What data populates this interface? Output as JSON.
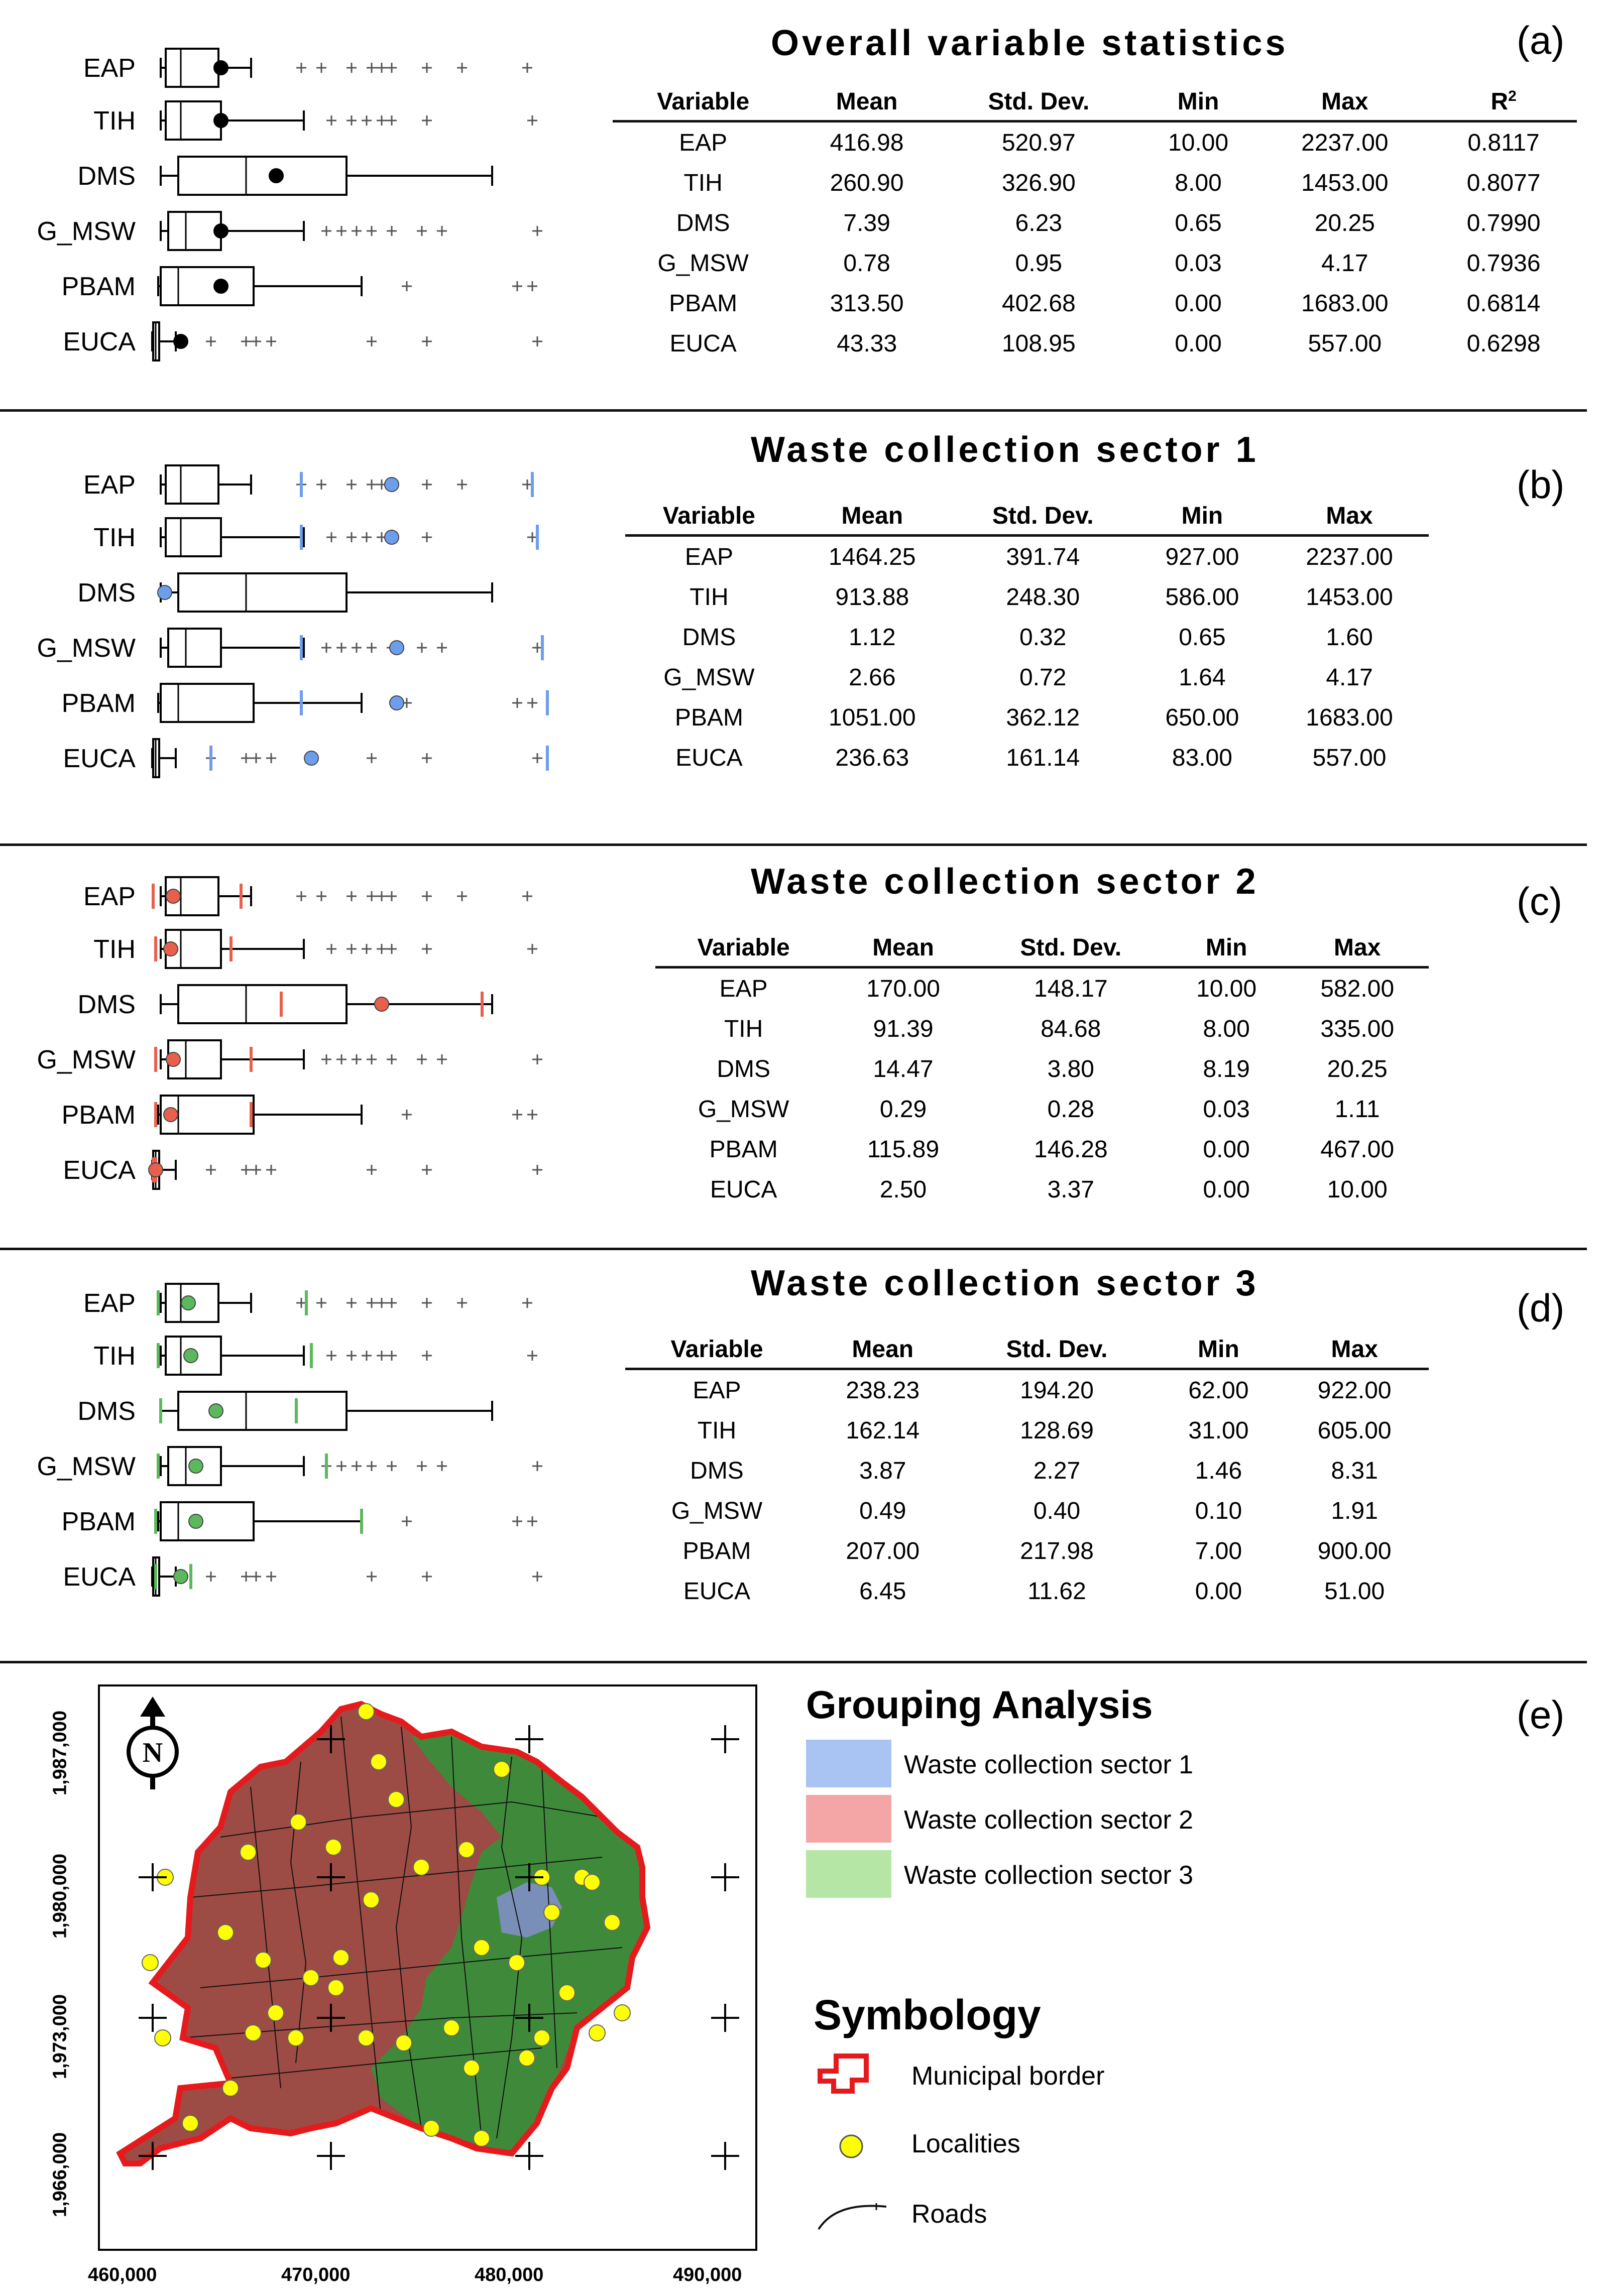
{
  "panels": [
    {
      "tag": "(a)",
      "title": "Overall variable statistics",
      "columns": [
        "Variable",
        "Mean",
        "Std. Dev.",
        "Min",
        "Max",
        "R2"
      ],
      "rows": [
        [
          "EAP",
          "416.98",
          "520.97",
          "10.00",
          "2237.00",
          "0.8117"
        ],
        [
          "TIH",
          "260.90",
          "326.90",
          "8.00",
          "1453.00",
          "0.8077"
        ],
        [
          "DMS",
          "7.39",
          "6.23",
          "0.65",
          "20.25",
          "0.7990"
        ],
        [
          "G_MSW",
          "0.78",
          "0.95",
          "0.03",
          "4.17",
          "0.7936"
        ],
        [
          "PBAM",
          "313.50",
          "402.68",
          "0.00",
          "1683.00",
          "0.6814"
        ],
        [
          "EUCA",
          "43.33",
          "108.95",
          "0.00",
          "557.00",
          "0.6298"
        ]
      ],
      "box_labels": [
        "EAP",
        "TIH",
        "DMS",
        "G_MSW",
        "PBAM",
        "EUCA"
      ],
      "marker_color": "#000000"
    },
    {
      "tag": "(b)",
      "title": "Waste collection sector 1",
      "columns": [
        "Variable",
        "Mean",
        "Std. Dev.",
        "Min",
        "Max"
      ],
      "rows": [
        [
          "EAP",
          "1464.25",
          "391.74",
          "927.00",
          "2237.00"
        ],
        [
          "TIH",
          "913.88",
          "248.30",
          "586.00",
          "1453.00"
        ],
        [
          "DMS",
          "1.12",
          "0.32",
          "0.65",
          "1.60"
        ],
        [
          "G_MSW",
          "2.66",
          "0.72",
          "1.64",
          "4.17"
        ],
        [
          "PBAM",
          "1051.00",
          "362.12",
          "650.00",
          "1683.00"
        ],
        [
          "EUCA",
          "236.63",
          "161.14",
          "83.00",
          "557.00"
        ]
      ],
      "box_labels": [
        "EAP",
        "TIH",
        "DMS",
        "G_MSW",
        "PBAM",
        "EUCA"
      ],
      "marker_color": "#6d9eeb"
    },
    {
      "tag": "(c)",
      "title": "Waste collection sector 2",
      "columns": [
        "Variable",
        "Mean",
        "Std. Dev.",
        "Min",
        "Max"
      ],
      "rows": [
        [
          "EAP",
          "170.00",
          "148.17",
          "10.00",
          "582.00"
        ],
        [
          "TIH",
          "91.39",
          "84.68",
          "8.00",
          "335.00"
        ],
        [
          "DMS",
          "14.47",
          "3.80",
          "8.19",
          "20.25"
        ],
        [
          "G_MSW",
          "0.29",
          "0.28",
          "0.03",
          "1.11"
        ],
        [
          "PBAM",
          "115.89",
          "146.28",
          "0.00",
          "467.00"
        ],
        [
          "EUCA",
          "2.50",
          "3.37",
          "0.00",
          "10.00"
        ]
      ],
      "box_labels": [
        "EAP",
        "TIH",
        "DMS",
        "G_MSW",
        "PBAM",
        "EUCA"
      ],
      "marker_color": "#e8604c"
    },
    {
      "tag": "(d)",
      "title": "Waste collection sector 3",
      "columns": [
        "Variable",
        "Mean",
        "Std. Dev.",
        "Min",
        "Max"
      ],
      "rows": [
        [
          "EAP",
          "238.23",
          "194.20",
          "62.00",
          "922.00"
        ],
        [
          "TIH",
          "162.14",
          "128.69",
          "31.00",
          "605.00"
        ],
        [
          "DMS",
          "3.87",
          "2.27",
          "1.46",
          "8.31"
        ],
        [
          "G_MSW",
          "0.49",
          "0.40",
          "0.10",
          "1.91"
        ],
        [
          "PBAM",
          "207.00",
          "217.98",
          "7.00",
          "900.00"
        ],
        [
          "EUCA",
          "6.45",
          "11.62",
          "0.00",
          "51.00"
        ]
      ],
      "box_labels": [
        "EAP",
        "TIH",
        "DMS",
        "G_MSW",
        "PBAM",
        "EUCA"
      ],
      "marker_color": "#5cb85c"
    }
  ],
  "map": {
    "tag": "(e)",
    "title": "Grouping Analysis",
    "legend": [
      {
        "label": "Waste collection sector 1",
        "color": "#a9c4f2"
      },
      {
        "label": "Waste collection sector 2",
        "color": "#f4a6a6"
      },
      {
        "label": "Waste collection sector 3",
        "color": "#b6e6a6"
      }
    ],
    "symbology_title": "Symbology",
    "symbology": [
      "Municipal border",
      "Localities",
      "Roads"
    ],
    "north_label": "N",
    "x_ticks": [
      "460,000",
      "470,000",
      "480,000",
      "490,000"
    ],
    "y_ticks": [
      "1,987,000",
      "1,980,000",
      "1,973,000",
      "1,966,000"
    ]
  },
  "chart_data": [
    {
      "type": "table",
      "title": "Overall variable statistics",
      "series": [
        {
          "name": "EAP",
          "values": [
            416.98,
            520.97,
            10.0,
            2237.0,
            0.8117
          ]
        },
        {
          "name": "TIH",
          "values": [
            260.9,
            326.9,
            8.0,
            1453.0,
            0.8077
          ]
        },
        {
          "name": "DMS",
          "values": [
            7.39,
            6.23,
            0.65,
            20.25,
            0.799
          ]
        },
        {
          "name": "G_MSW",
          "values": [
            0.78,
            0.95,
            0.03,
            4.17,
            0.7936
          ]
        },
        {
          "name": "PBAM",
          "values": [
            313.5,
            402.68,
            0.0,
            1683.0,
            0.6814
          ]
        },
        {
          "name": "EUCA",
          "values": [
            43.33,
            108.95,
            0.0,
            557.0,
            0.6298
          ]
        }
      ],
      "categories": [
        "Mean",
        "Std. Dev.",
        "Min",
        "Max",
        "R2"
      ]
    },
    {
      "type": "table",
      "title": "Waste collection sector 1",
      "categories": [
        "Mean",
        "Std. Dev.",
        "Min",
        "Max"
      ],
      "series": [
        {
          "name": "EAP",
          "values": [
            1464.25,
            391.74,
            927.0,
            2237.0
          ]
        },
        {
          "name": "TIH",
          "values": [
            913.88,
            248.3,
            586.0,
            1453.0
          ]
        },
        {
          "name": "DMS",
          "values": [
            1.12,
            0.32,
            0.65,
            1.6
          ]
        },
        {
          "name": "G_MSW",
          "values": [
            2.66,
            0.72,
            1.64,
            4.17
          ]
        },
        {
          "name": "PBAM",
          "values": [
            1051.0,
            362.12,
            650.0,
            1683.0
          ]
        },
        {
          "name": "EUCA",
          "values": [
            236.63,
            161.14,
            83.0,
            557.0
          ]
        }
      ]
    },
    {
      "type": "table",
      "title": "Waste collection sector 2",
      "categories": [
        "Mean",
        "Std. Dev.",
        "Min",
        "Max"
      ],
      "series": [
        {
          "name": "EAP",
          "values": [
            170.0,
            148.17,
            10.0,
            582.0
          ]
        },
        {
          "name": "TIH",
          "values": [
            91.39,
            84.68,
            8.0,
            335.0
          ]
        },
        {
          "name": "DMS",
          "values": [
            14.47,
            3.8,
            8.19,
            20.25
          ]
        },
        {
          "name": "G_MSW",
          "values": [
            0.29,
            0.28,
            0.03,
            1.11
          ]
        },
        {
          "name": "PBAM",
          "values": [
            115.89,
            146.28,
            0.0,
            467.0
          ]
        },
        {
          "name": "EUCA",
          "values": [
            2.5,
            3.37,
            0.0,
            10.0
          ]
        }
      ]
    },
    {
      "type": "table",
      "title": "Waste collection sector 3",
      "categories": [
        "Mean",
        "Std. Dev.",
        "Min",
        "Max"
      ],
      "series": [
        {
          "name": "EAP",
          "values": [
            238.23,
            194.2,
            62.0,
            922.0
          ]
        },
        {
          "name": "TIH",
          "values": [
            162.14,
            128.69,
            31.0,
            605.0
          ]
        },
        {
          "name": "DMS",
          "values": [
            3.87,
            2.27,
            1.46,
            8.31
          ]
        },
        {
          "name": "G_MSW",
          "values": [
            0.49,
            0.4,
            0.1,
            1.91
          ]
        },
        {
          "name": "PBAM",
          "values": [
            207.0,
            217.98,
            7.0,
            900.0
          ]
        },
        {
          "name": "EUCA",
          "values": [
            6.45,
            11.62,
            0.0,
            51.0
          ]
        }
      ]
    }
  ]
}
